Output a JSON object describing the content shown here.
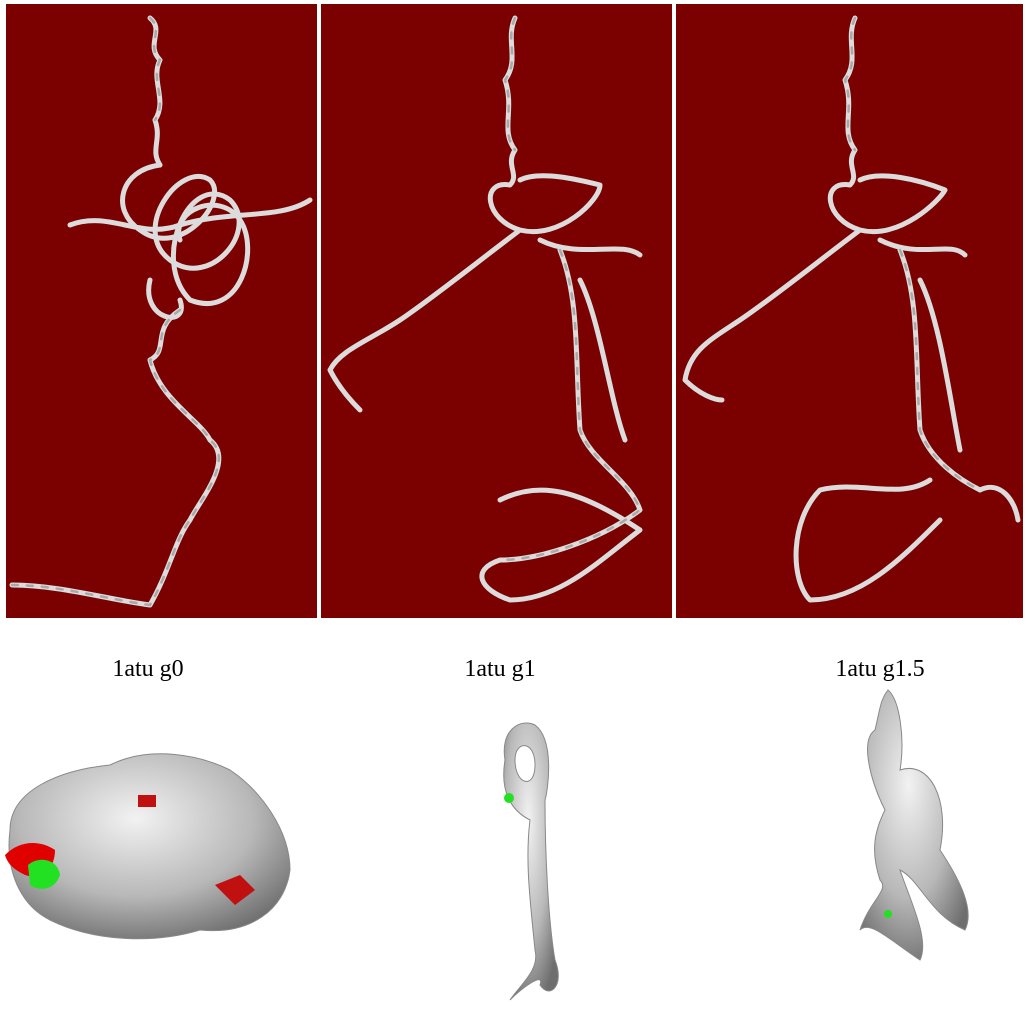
{
  "captions": [
    "1atu g0",
    "1atu g1",
    "1atu g1.5"
  ]
}
